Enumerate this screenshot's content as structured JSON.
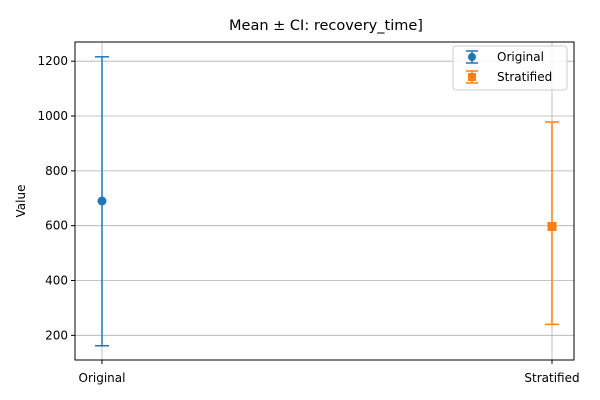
{
  "chart_data": {
    "type": "scatter",
    "title": "Mean ± CI: recovery_time]",
    "xlabel": "",
    "ylabel": "Value",
    "categories": [
      "Original",
      "Stratified"
    ],
    "ylim": [
      110,
      1270
    ],
    "yticks": [
      200,
      400,
      600,
      800,
      1000,
      1200
    ],
    "grid": true,
    "legend_position": "top-right",
    "series": [
      {
        "name": "Original",
        "category": "Original",
        "mean": 690,
        "ci_low": 162,
        "ci_high": 1216,
        "color": "#1f77b4",
        "marker": "circle"
      },
      {
        "name": "Stratified",
        "category": "Stratified",
        "mean": 597,
        "ci_low": 240,
        "ci_high": 978,
        "color": "#ff7f0e",
        "marker": "square"
      }
    ]
  }
}
